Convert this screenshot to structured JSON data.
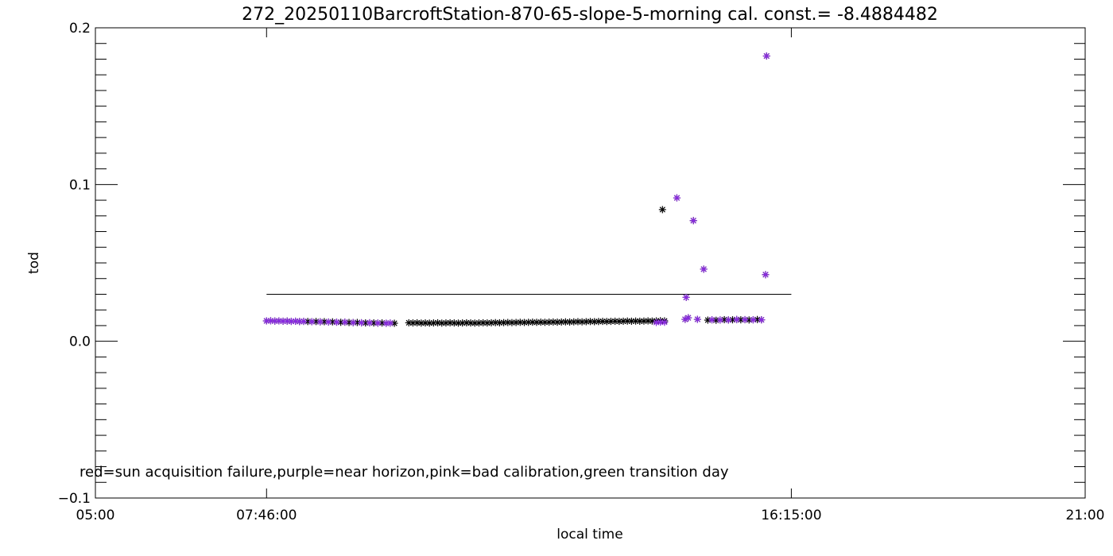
{
  "chart_data": {
    "type": "scatter",
    "title": "272_20250110BarcroftStation-870-65-slope-5-morning cal. const.= -8.4884482",
    "xlabel": "local time",
    "ylabel": "tod",
    "xlim": [
      "05:00",
      "21:00"
    ],
    "ylim": [
      -0.1,
      0.2
    ],
    "x_ticks": [
      "05:00",
      "07:46:00",
      "16:15:00",
      "21:00"
    ],
    "y_ticks": [
      "-0.1",
      "0.0",
      "0.1",
      "0.2"
    ],
    "grid": false,
    "note": "red=sun acquisition failure,purple=near horizon,pink=bad calibration,green transition day",
    "colors": {
      "black": "#000000",
      "purple": "#8a2be2"
    },
    "reference_line": {
      "x": [
        "07:46",
        "16:15"
      ],
      "y": 0.03
    },
    "series": [
      {
        "color": "black",
        "points": [
          [
            "07:46",
            0.013
          ],
          [
            "07:50",
            0.0131
          ],
          [
            "07:54",
            0.0129
          ],
          [
            "07:58",
            0.013
          ],
          [
            "08:02",
            0.0128
          ],
          [
            "08:06",
            0.0129
          ],
          [
            "08:10",
            0.0127
          ],
          [
            "08:14",
            0.0128
          ],
          [
            "08:18",
            0.0126
          ],
          [
            "08:22",
            0.0127
          ],
          [
            "08:26",
            0.0126
          ],
          [
            "08:30",
            0.0125
          ],
          [
            "08:34",
            0.0126
          ],
          [
            "08:38",
            0.0124
          ],
          [
            "08:42",
            0.0125
          ],
          [
            "08:46",
            0.0123
          ],
          [
            "08:50",
            0.0124
          ],
          [
            "08:54",
            0.0122
          ],
          [
            "08:58",
            0.0121
          ],
          [
            "09:02",
            0.0122
          ],
          [
            "09:06",
            0.012
          ],
          [
            "09:10",
            0.0119
          ],
          [
            "09:14",
            0.012
          ],
          [
            "09:18",
            0.0118
          ],
          [
            "09:22",
            0.0117
          ],
          [
            "09:26",
            0.0118
          ],
          [
            "09:30",
            0.0117
          ],
          [
            "09:34",
            0.0116
          ],
          [
            "09:38",
            0.0117
          ],
          [
            "09:42",
            0.0115
          ],
          [
            "09:46",
            0.0116
          ],
          [
            "09:50",
            0.0115
          ],
          [
            "10:04",
            0.0118
          ],
          [
            "10:08",
            0.0117
          ],
          [
            "10:12",
            0.0118
          ],
          [
            "10:16",
            0.0116
          ],
          [
            "10:20",
            0.0117
          ],
          [
            "10:24",
            0.0116
          ],
          [
            "10:28",
            0.0117
          ],
          [
            "10:32",
            0.0118
          ],
          [
            "10:36",
            0.0116
          ],
          [
            "10:40",
            0.0117
          ],
          [
            "10:44",
            0.0118
          ],
          [
            "10:48",
            0.0117
          ],
          [
            "10:52",
            0.0116
          ],
          [
            "10:56",
            0.0117
          ],
          [
            "11:00",
            0.0118
          ],
          [
            "11:04",
            0.0117
          ],
          [
            "11:08",
            0.0116
          ],
          [
            "11:12",
            0.0117
          ],
          [
            "11:16",
            0.0118
          ],
          [
            "11:20",
            0.0117
          ],
          [
            "11:24",
            0.0118
          ],
          [
            "11:28",
            0.0119
          ],
          [
            "11:32",
            0.0118
          ],
          [
            "11:36",
            0.0119
          ],
          [
            "11:40",
            0.012
          ],
          [
            "11:44",
            0.0119
          ],
          [
            "11:48",
            0.012
          ],
          [
            "11:52",
            0.0121
          ],
          [
            "11:56",
            0.012
          ],
          [
            "12:00",
            0.0121
          ],
          [
            "12:04",
            0.0122
          ],
          [
            "12:08",
            0.0121
          ],
          [
            "12:12",
            0.0122
          ],
          [
            "12:16",
            0.0121
          ],
          [
            "12:20",
            0.0122
          ],
          [
            "12:24",
            0.0123
          ],
          [
            "12:28",
            0.0122
          ],
          [
            "12:32",
            0.0123
          ],
          [
            "12:36",
            0.0124
          ],
          [
            "12:40",
            0.0123
          ],
          [
            "12:44",
            0.0124
          ],
          [
            "12:48",
            0.0125
          ],
          [
            "12:52",
            0.0124
          ],
          [
            "12:56",
            0.0125
          ],
          [
            "13:00",
            0.0126
          ],
          [
            "13:04",
            0.0125
          ],
          [
            "13:08",
            0.0126
          ],
          [
            "13:12",
            0.0127
          ],
          [
            "13:16",
            0.0126
          ],
          [
            "13:20",
            0.0127
          ],
          [
            "13:24",
            0.0128
          ],
          [
            "13:28",
            0.0127
          ],
          [
            "13:32",
            0.0128
          ],
          [
            "13:36",
            0.0129
          ],
          [
            "13:40",
            0.0128
          ],
          [
            "13:44",
            0.0129
          ],
          [
            "13:48",
            0.0128
          ],
          [
            "13:52",
            0.0129
          ],
          [
            "13:56",
            0.013
          ],
          [
            "14:00",
            0.0129
          ],
          [
            "14:04",
            0.013
          ],
          [
            "14:08",
            0.0131
          ],
          [
            "14:12",
            0.013
          ],
          [
            "14:10",
            0.084
          ],
          [
            "14:24",
            0.0915
          ],
          [
            "14:32",
            0.014
          ],
          [
            "14:33",
            0.028
          ],
          [
            "14:35",
            0.015
          ],
          [
            "14:40",
            0.077
          ],
          [
            "14:44",
            0.014
          ],
          [
            "14:50",
            0.046
          ],
          [
            "14:54",
            0.0135
          ],
          [
            "14:58",
            0.0137
          ],
          [
            "15:02",
            0.0134
          ],
          [
            "15:06",
            0.0136
          ],
          [
            "15:10",
            0.0138
          ],
          [
            "15:14",
            0.0136
          ],
          [
            "15:18",
            0.0137
          ],
          [
            "15:22",
            0.0139
          ],
          [
            "15:26",
            0.0137
          ],
          [
            "15:30",
            0.0138
          ],
          [
            "15:34",
            0.0136
          ],
          [
            "15:38",
            0.0137
          ],
          [
            "15:42",
            0.0139
          ],
          [
            "15:46",
            0.0137
          ],
          [
            "15:50",
            0.0425
          ],
          [
            "15:51",
            0.182
          ]
        ]
      },
      {
        "color": "purple",
        "points": [
          [
            "07:46",
            0.013
          ],
          [
            "07:50",
            0.0131
          ],
          [
            "07:54",
            0.0129
          ],
          [
            "07:58",
            0.013
          ],
          [
            "08:02",
            0.0128
          ],
          [
            "08:06",
            0.0129
          ],
          [
            "08:10",
            0.0127
          ],
          [
            "08:14",
            0.0128
          ],
          [
            "08:18",
            0.0126
          ],
          [
            "08:22",
            0.0127
          ],
          [
            "08:30",
            0.0125
          ],
          [
            "08:38",
            0.0124
          ],
          [
            "08:46",
            0.0123
          ],
          [
            "08:54",
            0.0122
          ],
          [
            "09:02",
            0.0122
          ],
          [
            "09:10",
            0.0119
          ],
          [
            "09:18",
            0.0118
          ],
          [
            "09:26",
            0.0118
          ],
          [
            "09:34",
            0.0116
          ],
          [
            "09:42",
            0.0115
          ],
          [
            "09:46",
            0.0116
          ],
          [
            "14:04",
            0.012
          ],
          [
            "14:08",
            0.0122
          ],
          [
            "14:12",
            0.0121
          ],
          [
            "14:24",
            0.0915
          ],
          [
            "14:32",
            0.014
          ],
          [
            "14:33",
            0.028
          ],
          [
            "14:35",
            0.015
          ],
          [
            "14:40",
            0.077
          ],
          [
            "14:44",
            0.014
          ],
          [
            "14:50",
            0.046
          ],
          [
            "14:58",
            0.0137
          ],
          [
            "15:06",
            0.0136
          ],
          [
            "15:14",
            0.0136
          ],
          [
            "15:22",
            0.0139
          ],
          [
            "15:30",
            0.0138
          ],
          [
            "15:38",
            0.0137
          ],
          [
            "15:46",
            0.0137
          ],
          [
            "15:50",
            0.0425
          ],
          [
            "15:51",
            0.182
          ]
        ]
      }
    ]
  }
}
